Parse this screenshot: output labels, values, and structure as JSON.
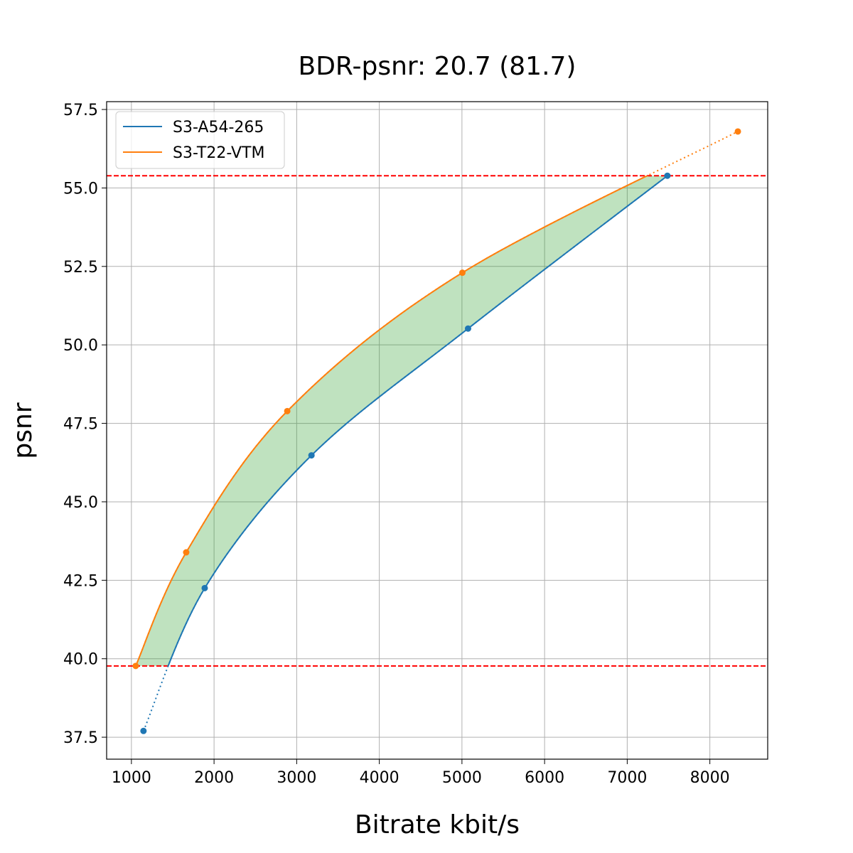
{
  "chart_data": {
    "type": "line",
    "title": "BDR-psnr: 20.7 (81.7)",
    "xlabel": "Bitrate kbit/s",
    "ylabel": "psnr",
    "xlim": [
      700,
      8700
    ],
    "ylim": [
      36.8,
      57.75
    ],
    "xticks": [
      1000,
      2000,
      3000,
      4000,
      5000,
      6000,
      7000,
      8000
    ],
    "yticks": [
      37.5,
      40.0,
      42.5,
      45.0,
      47.5,
      50.0,
      52.5,
      55.0,
      57.5
    ],
    "grid": true,
    "legend_position": "top-left",
    "series": [
      {
        "name": "S3-A54-265",
        "color": "#1f77b4",
        "x": [
          1146,
          1887,
          3179,
          5074,
          7486
        ],
        "y": [
          37.7,
          42.25,
          46.48,
          50.52,
          55.39
        ]
      },
      {
        "name": "S3-T22-VTM",
        "color": "#ff7f0e",
        "x": [
          1052,
          1663,
          2886,
          5005,
          8339
        ],
        "y": [
          39.77,
          43.39,
          47.89,
          52.3,
          56.8
        ]
      }
    ],
    "reference_lines": {
      "y": [
        39.77,
        55.39
      ],
      "color": "#ff0000",
      "style": "dashed"
    },
    "fill_color": "#2ca02c"
  }
}
